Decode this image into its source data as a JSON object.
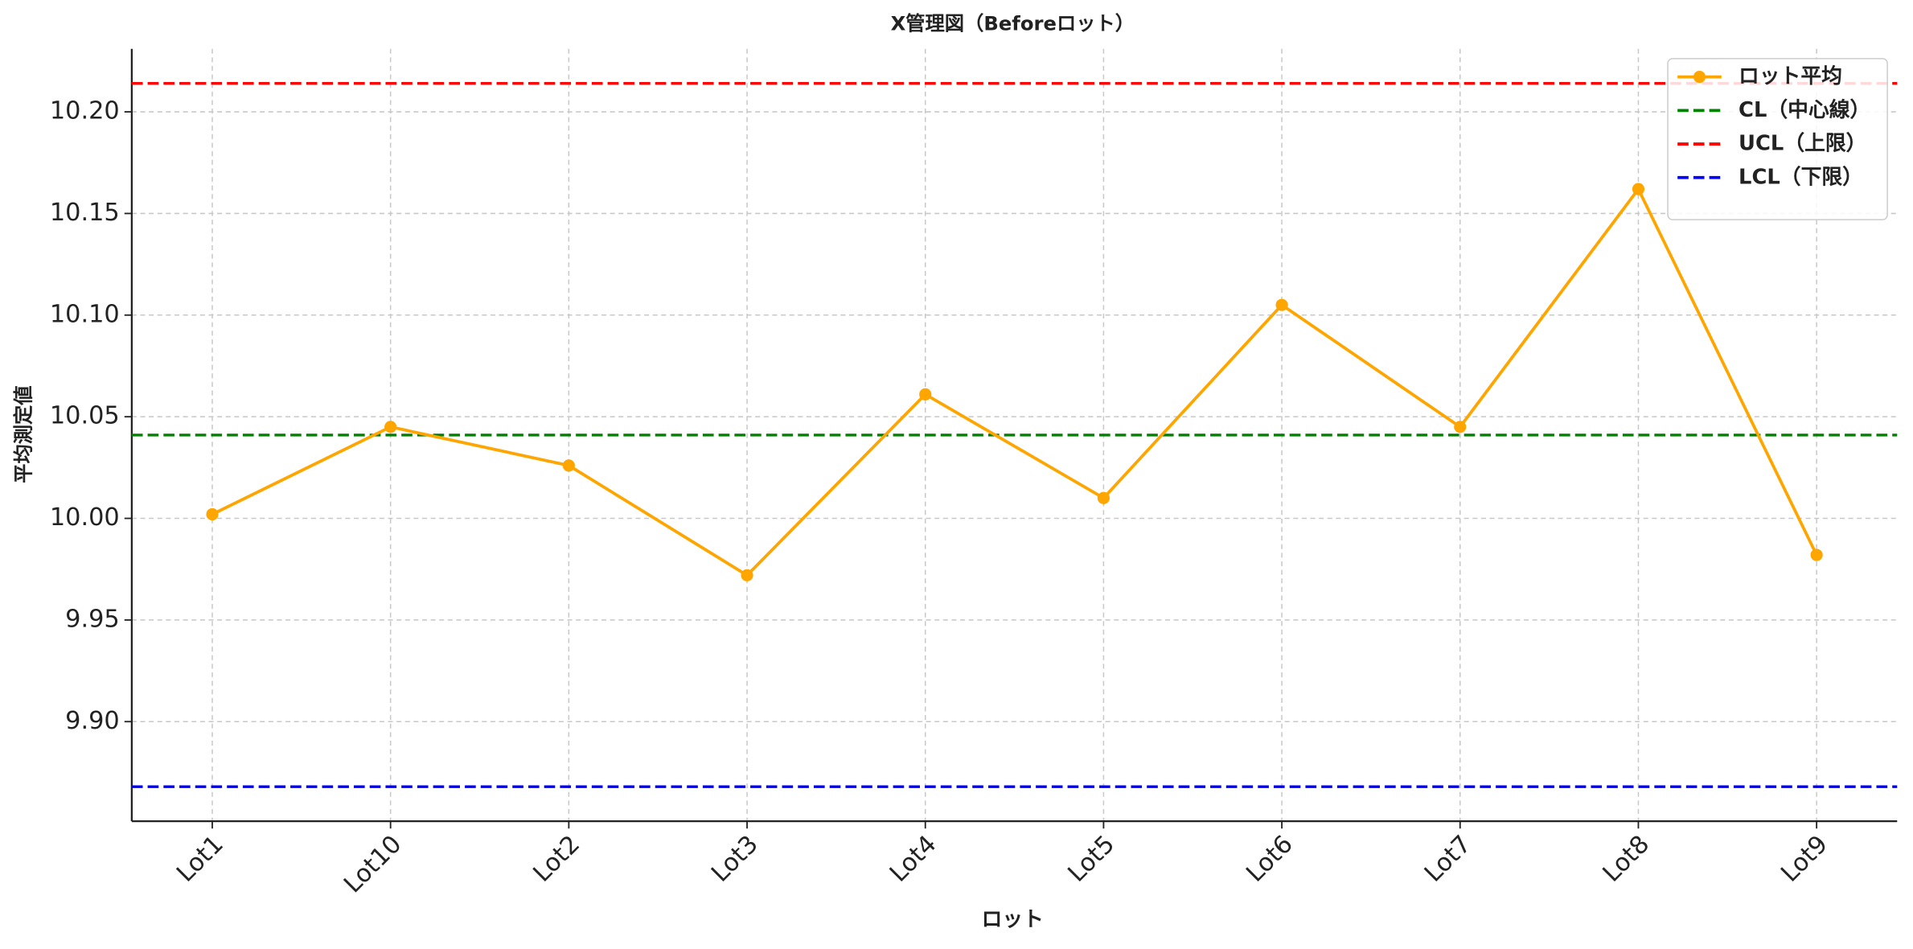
{
  "chart_data": {
    "type": "line",
    "title": "X管理図（Beforeロット）",
    "x_label": "ロット",
    "y_label": "平均測定値",
    "categories": [
      "Lot1",
      "Lot10",
      "Lot2",
      "Lot3",
      "Lot4",
      "Lot5",
      "Lot6",
      "Lot7",
      "Lot8",
      "Lot9"
    ],
    "series": [
      {
        "name": "ロット平均",
        "color": "#ffa500",
        "values": [
          10.002,
          10.045,
          10.026,
          9.972,
          10.061,
          10.01,
          10.105,
          10.045,
          10.162,
          9.982
        ]
      }
    ],
    "control_lines": [
      {
        "name": "CL（中心線）",
        "value": 10.041,
        "color": "#008000"
      },
      {
        "name": "UCL（上限）",
        "value": 10.214,
        "color": "#ff0000"
      },
      {
        "name": "LCL（下限）",
        "value": 9.868,
        "color": "#0000ff"
      }
    ],
    "ylim": [
      9.851,
      10.231
    ],
    "yticks": [
      {
        "value": 9.9,
        "label": "9.90"
      },
      9.95,
      {
        "value": 10.0,
        "label": "10.00"
      },
      10.05,
      {
        "value": 10.1,
        "label": "10.10"
      },
      10.15,
      {
        "value": 10.2,
        "label": "10.20"
      }
    ],
    "grid": true,
    "legend": "upper right"
  }
}
